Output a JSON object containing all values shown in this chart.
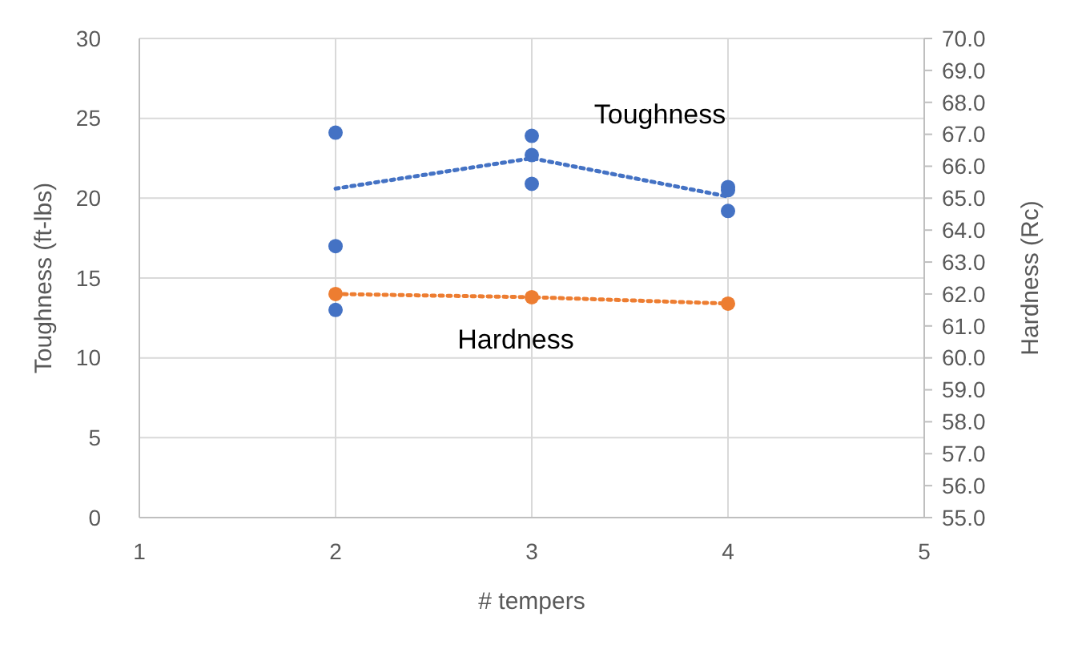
{
  "chart_data": {
    "type": "scatter",
    "xlabel": "# tempers",
    "ylabel": "Toughness (ft-lbs)",
    "y2label": "Hardness (Rc)",
    "xlim": [
      1,
      5
    ],
    "xticks": [
      1,
      2,
      3,
      4,
      5
    ],
    "ylim": [
      0,
      30
    ],
    "yticks": [
      0,
      5,
      10,
      15,
      20,
      25,
      30
    ],
    "y2lim": [
      55,
      70
    ],
    "y2ticks": [
      {
        "value": 55,
        "label": "55.0"
      },
      {
        "value": 56,
        "label": "56.0"
      },
      {
        "value": 57,
        "label": "57.0"
      },
      {
        "value": 58,
        "label": "58.0"
      },
      {
        "value": 59,
        "label": "59.0"
      },
      {
        "value": 60,
        "label": "60.0"
      },
      {
        "value": 61,
        "label": "61.0"
      },
      {
        "value": 62,
        "label": "62.0"
      },
      {
        "value": 63,
        "label": "63.0"
      },
      {
        "value": 64,
        "label": "64.0"
      },
      {
        "value": 65,
        "label": "65.0"
      },
      {
        "value": 66,
        "label": "66.0"
      },
      {
        "value": 67,
        "label": "67.0"
      },
      {
        "value": 68,
        "label": "68.0"
      },
      {
        "value": 69,
        "label": "69.0"
      },
      {
        "value": 70,
        "label": "70.0"
      }
    ],
    "grid": true,
    "legend": false,
    "series": [
      {
        "color": "#4472c4",
        "marker": "circle",
        "x": [
          2,
          2,
          2,
          3,
          3,
          3,
          4,
          4,
          4
        ],
        "values": [
          24.1,
          17.0,
          13.0,
          23.9,
          22.7,
          20.9,
          20.7,
          20.5,
          19.2
        ]
      },
      {
        "type": "line",
        "name": "Toughness",
        "color": "#4472c4",
        "marker": "none",
        "line_style": "dotted",
        "x": [
          2,
          3,
          4
        ],
        "values": [
          20.6,
          22.5,
          20.1
        ]
      },
      {
        "type": "line",
        "name": "Hardness",
        "color": "#ed7d31",
        "marker": "circle",
        "line_style": "dotted",
        "axis": "y2",
        "x": [
          2,
          3,
          4
        ],
        "values": [
          62.0,
          61.9,
          61.7
        ]
      }
    ]
  }
}
